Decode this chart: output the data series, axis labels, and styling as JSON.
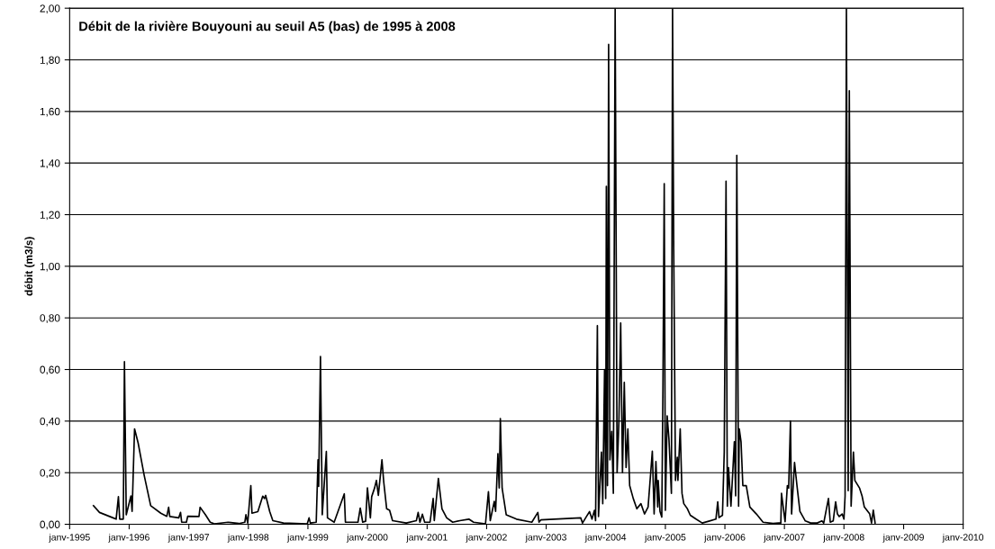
{
  "chart_data": {
    "type": "line",
    "title": "Débit de la rivière Bouyouni au seuil A5 (bas) de 1995 à 2008",
    "ylabel": "débit (m3/s)",
    "xlim": [
      "1995-01-01",
      "2010-01-01"
    ],
    "xticks": [
      {
        "value": "1995-01-01",
        "label": "janv-1995"
      },
      {
        "value": "1996-01-01",
        "label": "janv-1996"
      },
      {
        "value": "1997-01-01",
        "label": "janv-1997"
      },
      {
        "value": "1998-01-01",
        "label": "janv-1998"
      },
      {
        "value": "1999-01-01",
        "label": "janv-1999"
      },
      {
        "value": "2000-01-01",
        "label": "janv-2000"
      },
      {
        "value": "2001-01-01",
        "label": "janv-2001"
      },
      {
        "value": "2002-01-01",
        "label": "janv-2002"
      },
      {
        "value": "2003-01-01",
        "label": "janv-2003"
      },
      {
        "value": "2004-01-01",
        "label": "janv-2004"
      },
      {
        "value": "2005-01-01",
        "label": "janv-2005"
      },
      {
        "value": "2006-01-01",
        "label": "janv-2006"
      },
      {
        "value": "2007-01-01",
        "label": "janv-2007"
      },
      {
        "value": "2008-01-01",
        "label": "janv-2008"
      },
      {
        "value": "2009-01-01",
        "label": "janv-2009"
      },
      {
        "value": "2010-01-01",
        "label": "janv-2010"
      }
    ],
    "ylim": [
      0,
      2
    ],
    "yticks": [
      {
        "value": 0,
        "label": "0,00"
      },
      {
        "value": 0.2,
        "label": "0,20"
      },
      {
        "value": 0.4,
        "label": "0,40"
      },
      {
        "value": 0.6,
        "label": "0,60"
      },
      {
        "value": 0.8,
        "label": "0,80"
      },
      {
        "value": 1.0,
        "label": "1,00"
      },
      {
        "value": 1.2,
        "label": "1,20"
      },
      {
        "value": 1.4,
        "label": "1,40"
      },
      {
        "value": 1.6,
        "label": "1,60"
      },
      {
        "value": 1.8,
        "label": "1,80"
      },
      {
        "value": 2.0,
        "label": "2,00"
      }
    ],
    "grid": "y",
    "marker": "none",
    "line_style": "solid",
    "series": [
      {
        "color": "#000000",
        "x": [
          "1995-05-27",
          "1995-07-03",
          "1995-09-24",
          "1995-10-13",
          "1995-10-27",
          "1995-11-04",
          "1995-11-26",
          "1995-12-03",
          "1995-12-14",
          "1996-01-12",
          "1996-01-19",
          "1996-02-03",
          "1996-02-25",
          "1996-04-02",
          "1996-05-12",
          "1996-07-13",
          "1996-08-19",
          "1996-08-30",
          "1996-09-06",
          "1996-10-31",
          "1996-11-11",
          "1996-11-18",
          "1996-12-17",
          "1996-12-25",
          "1997-03-04",
          "1997-03-11",
          "1997-04-13",
          "1997-05-12",
          "1997-06-07",
          "1997-08-30",
          "1997-11-04",
          "1997-12-10",
          "1997-12-17",
          "1997-12-28",
          "1998-01-16",
          "1998-01-23",
          "1998-02-28",
          "1998-03-30",
          "1998-04-10",
          "1998-04-17",
          "1998-05-12",
          "1998-05-31",
          "1998-08-04",
          "1998-12-28",
          "1999-01-08",
          "1999-01-16",
          "1999-02-21",
          "1999-03-04",
          "1999-03-08",
          "1999-03-19",
          "1999-03-30",
          "1999-04-24",
          "1999-05-01",
          "1999-06-11",
          "1999-08-12",
          "1999-08-19",
          "1999-11-04",
          "1999-11-18",
          "1999-12-03",
          "1999-12-21",
          "2000-01-01",
          "2000-01-19",
          "2000-01-27",
          "2000-02-14",
          "2000-02-25",
          "2000-03-08",
          "2000-03-30",
          "2000-04-10",
          "2000-04-28",
          "2000-05-16",
          "2000-06-03",
          "2000-08-26",
          "2000-10-27",
          "2000-11-07",
          "2000-11-18",
          "2000-12-03",
          "2000-12-17",
          "2001-01-19",
          "2001-02-07",
          "2001-02-14",
          "2001-03-11",
          "2001-04-02",
          "2001-05-01",
          "2001-06-07",
          "2001-07-21",
          "2001-09-14",
          "2001-10-13",
          "2001-12-25",
          "2002-01-12",
          "2002-01-23",
          "2002-02-17",
          "2002-02-25",
          "2002-03-11",
          "2002-03-19",
          "2002-03-26",
          "2002-04-06",
          "2002-05-01",
          "2002-07-03",
          "2002-10-05",
          "2002-11-11",
          "2002-11-18",
          "2002-11-29",
          "2003-08-01",
          "2003-08-12",
          "2003-09-06",
          "2003-09-24",
          "2003-10-09",
          "2003-10-24",
          "2003-10-31",
          "2003-11-11",
          "2003-11-18",
          "2003-12-06",
          "2003-12-14",
          "2003-12-25",
          "2004-01-01",
          "2004-01-05",
          "2004-01-12",
          "2004-01-19",
          "2004-01-27",
          "2004-02-07",
          "2004-02-17",
          "2004-02-28",
          "2004-03-11",
          "2004-03-22",
          "2004-04-02",
          "2004-04-13",
          "2004-04-24",
          "2004-05-05",
          "2004-05-16",
          "2004-05-27",
          "2004-06-18",
          "2004-07-10",
          "2004-08-04",
          "2004-08-26",
          "2004-09-17",
          "2004-10-13",
          "2004-10-24",
          "2004-11-04",
          "2004-11-15",
          "2004-11-18",
          "2004-11-29",
          "2004-12-10",
          "2004-12-17",
          "2004-12-25",
          "2005-01-01",
          "2005-01-12",
          "2005-01-23",
          "2005-02-07",
          "2005-02-14",
          "2005-02-21",
          "2005-03-04",
          "2005-03-15",
          "2005-03-19",
          "2005-04-02",
          "2005-04-13",
          "2005-04-24",
          "2005-05-16",
          "2005-06-03",
          "2005-07-06",
          "2005-08-15",
          "2005-09-24",
          "2005-11-07",
          "2005-11-18",
          "2005-11-26",
          "2005-12-17",
          "2005-12-28",
          "2006-01-08",
          "2006-01-16",
          "2006-01-23",
          "2006-02-07",
          "2006-02-28",
          "2006-03-08",
          "2006-03-15",
          "2006-03-26",
          "2006-03-30",
          "2006-04-10",
          "2006-04-21",
          "2006-05-12",
          "2006-06-03",
          "2006-07-13",
          "2006-08-23",
          "2006-10-24",
          "2006-11-26",
          "2006-12-10",
          "2006-12-14",
          "2007-01-05",
          "2007-01-19",
          "2007-01-27",
          "2007-02-07",
          "2007-02-14",
          "2007-03-04",
          "2007-03-19",
          "2007-04-06",
          "2007-05-09",
          "2007-06-11",
          "2007-07-21",
          "2007-08-19",
          "2007-08-30",
          "2007-09-28",
          "2007-10-09",
          "2007-10-27",
          "2007-11-11",
          "2007-11-22",
          "2007-12-03",
          "2007-12-21",
          "2008-01-01",
          "2008-01-08",
          "2008-01-16",
          "2008-01-27",
          "2008-02-03",
          "2008-02-14",
          "2008-02-28",
          "2008-03-08",
          "2008-04-06",
          "2008-04-21",
          "2008-05-05",
          "2008-06-07",
          "2008-06-18",
          "2008-06-29",
          "2008-07-10"
        ],
        "values": [
          0.072,
          0.046,
          0.025,
          0.02,
          0.107,
          0.02,
          0.02,
          0.63,
          0.037,
          0.11,
          0.05,
          0.37,
          0.315,
          0.19,
          0.072,
          0.043,
          0.031,
          0.066,
          0.03,
          0.025,
          0.046,
          0.008,
          0.008,
          0.031,
          0.03,
          0.066,
          0.037,
          0.008,
          0.002,
          0.008,
          0.003,
          0.008,
          0.037,
          0.005,
          0.15,
          0.043,
          0.049,
          0.109,
          0.1,
          0.112,
          0.049,
          0.014,
          0.005,
          0.002,
          0.025,
          0.005,
          0.008,
          0.25,
          0.147,
          0.65,
          0.037,
          0.282,
          0.025,
          0.008,
          0.118,
          0.008,
          0.008,
          0.063,
          0.008,
          0.012,
          0.141,
          0.025,
          0.107,
          0.141,
          0.17,
          0.112,
          0.25,
          0.164,
          0.06,
          0.054,
          0.014,
          0.005,
          0.014,
          0.046,
          0.008,
          0.039,
          0.008,
          0.008,
          0.1,
          0.014,
          0.178,
          0.06,
          0.025,
          0.008,
          0.014,
          0.02,
          0.008,
          0.002,
          0.126,
          0.014,
          0.089,
          0.05,
          0.274,
          0.141,
          0.41,
          0.14,
          0.037,
          0.02,
          0.008,
          0.046,
          0.008,
          0.017,
          0.025,
          0.005,
          0.031,
          0.049,
          0.02,
          0.054,
          0.014,
          0.77,
          0.03,
          0.28,
          0.08,
          0.6,
          0.1,
          1.31,
          0.15,
          1.86,
          0.25,
          0.36,
          0.12,
          2.0,
          0.2,
          0.4,
          0.78,
          0.2,
          0.55,
          0.22,
          0.37,
          0.15,
          0.1,
          0.06,
          0.08,
          0.04,
          0.067,
          0.283,
          0.04,
          0.243,
          0.067,
          0.17,
          0.05,
          0.028,
          0.52,
          1.32,
          0.054,
          0.42,
          0.33,
          0.12,
          2.0,
          1.08,
          0.17,
          0.26,
          0.17,
          0.37,
          0.12,
          0.08,
          0.06,
          0.035,
          0.021,
          0.005,
          0.012,
          0.02,
          0.087,
          0.026,
          0.035,
          0.28,
          1.33,
          0.07,
          0.22,
          0.07,
          0.32,
          0.11,
          1.43,
          0.07,
          0.37,
          0.32,
          0.15,
          0.15,
          0.067,
          0.04,
          0.008,
          0.003,
          0.005,
          0.005,
          0.12,
          0.01,
          0.15,
          0.14,
          0.4,
          0.04,
          0.24,
          0.15,
          0.05,
          0.013,
          0.005,
          0.005,
          0.013,
          0.005,
          0.1,
          0.008,
          0.013,
          0.087,
          0.04,
          0.03,
          0.04,
          0.02,
          0.11,
          2.0,
          0.13,
          1.68,
          0.07,
          0.28,
          0.17,
          0.14,
          0.11,
          0.067,
          0.04,
          0.005,
          0.055,
          0.005
        ]
      }
    ]
  }
}
